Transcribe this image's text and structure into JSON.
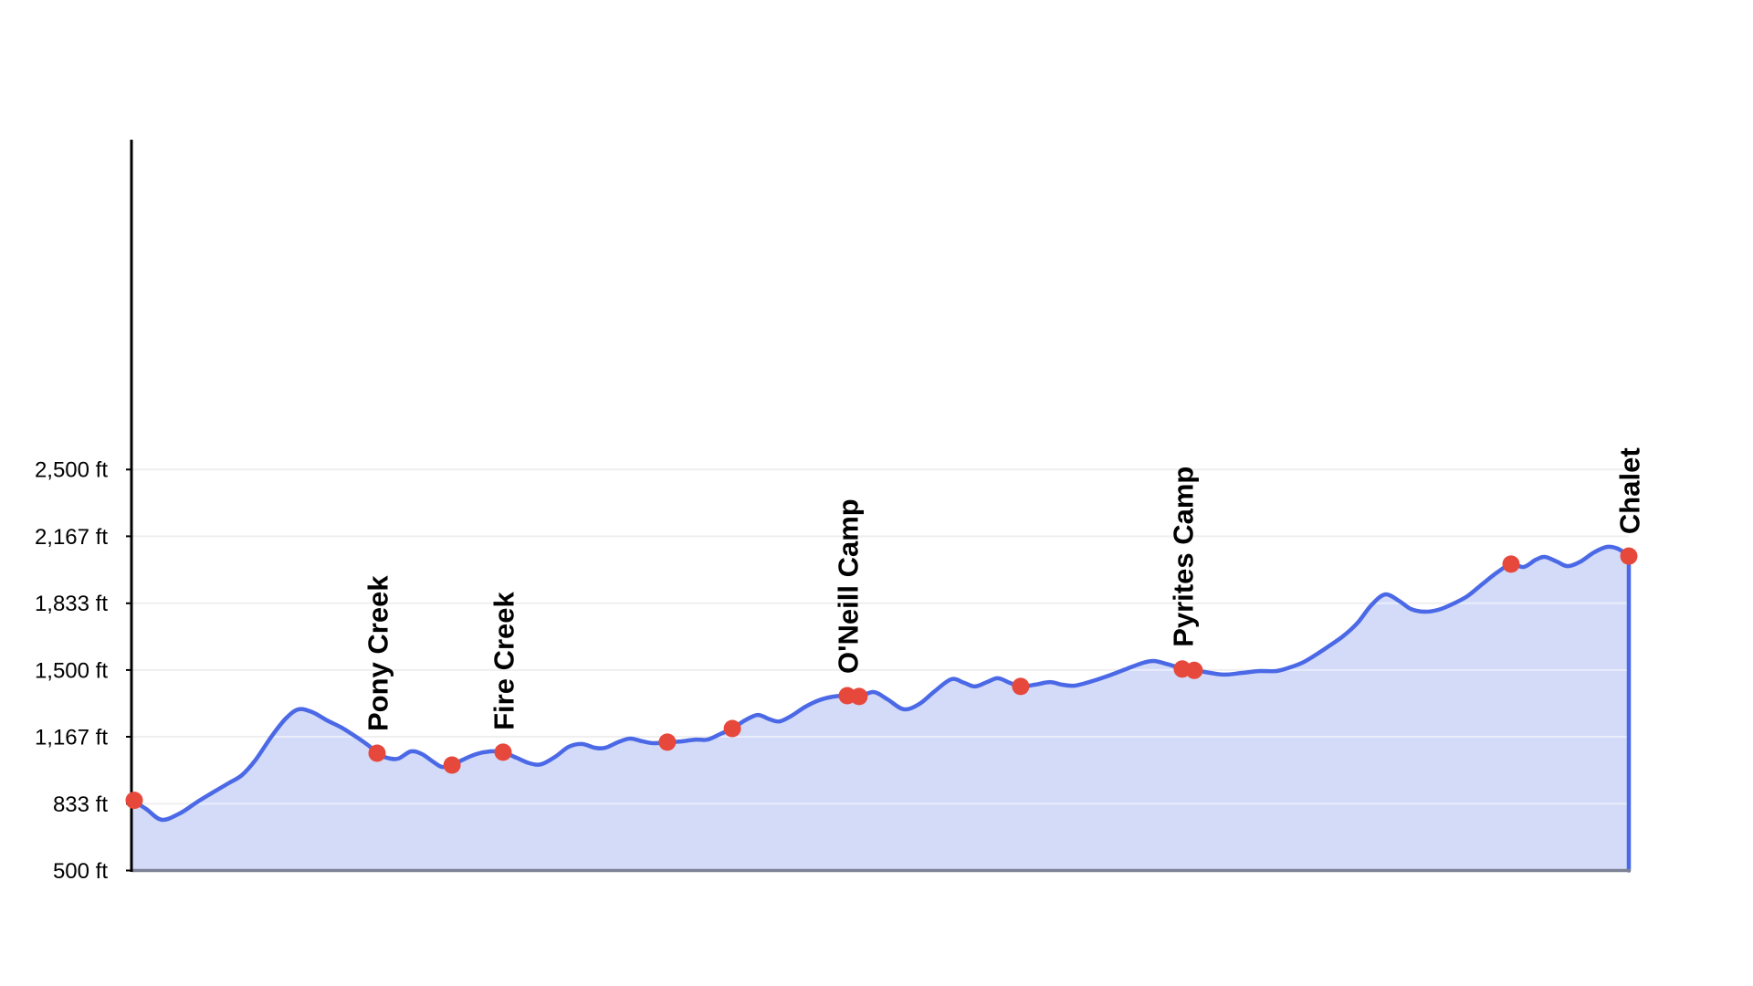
{
  "chart_data": {
    "type": "area",
    "title": "",
    "units": "ft",
    "grid": "horizontal",
    "legend": "none",
    "ylim": [
      500,
      4145
    ],
    "y_ticks": [
      {
        "ft": 500,
        "label": "500 ft"
      },
      {
        "ft": 833,
        "label": "833 ft"
      },
      {
        "ft": 1167,
        "label": "1,167 ft"
      },
      {
        "ft": 1500,
        "label": "1,500 ft"
      },
      {
        "ft": 1833,
        "label": "1,833 ft"
      },
      {
        "ft": 2167,
        "label": "2,167 ft"
      },
      {
        "ft": 2500,
        "label": "2,500 ft"
      }
    ],
    "series": [
      {
        "name": "elevation-profile",
        "points": [
          [
            0.0,
            850
          ],
          [
            0.0092,
            807
          ],
          [
            0.0195,
            753
          ],
          [
            0.0317,
            785
          ],
          [
            0.0427,
            839
          ],
          [
            0.0537,
            889
          ],
          [
            0.0641,
            935
          ],
          [
            0.0732,
            976
          ],
          [
            0.0824,
            1053
          ],
          [
            0.0933,
            1172
          ],
          [
            0.1025,
            1258
          ],
          [
            0.111,
            1304
          ],
          [
            0.1202,
            1290
          ],
          [
            0.13,
            1249
          ],
          [
            0.1397,
            1213
          ],
          [
            0.1495,
            1167
          ],
          [
            0.158,
            1122
          ],
          [
            0.1635,
            1085
          ],
          [
            0.1702,
            1062
          ],
          [
            0.1775,
            1058
          ],
          [
            0.1861,
            1094
          ],
          [
            0.1934,
            1081
          ],
          [
            0.2007,
            1044
          ],
          [
            0.2068,
            1017
          ],
          [
            0.2136,
            1026
          ],
          [
            0.2209,
            1053
          ],
          [
            0.23,
            1081
          ],
          [
            0.2392,
            1094
          ],
          [
            0.2477,
            1090
          ],
          [
            0.2568,
            1062
          ],
          [
            0.2654,
            1035
          ],
          [
            0.2733,
            1030
          ],
          [
            0.2825,
            1067
          ],
          [
            0.2916,
            1117
          ],
          [
            0.3002,
            1131
          ],
          [
            0.3093,
            1112
          ],
          [
            0.316,
            1112
          ],
          [
            0.3246,
            1140
          ],
          [
            0.3325,
            1158
          ],
          [
            0.3411,
            1144
          ],
          [
            0.3484,
            1135
          ],
          [
            0.3575,
            1140
          ],
          [
            0.3667,
            1144
          ],
          [
            0.3764,
            1153
          ],
          [
            0.3844,
            1153
          ],
          [
            0.3929,
            1181
          ],
          [
            0.4009,
            1208
          ],
          [
            0.4094,
            1249
          ],
          [
            0.4179,
            1276
          ],
          [
            0.4259,
            1254
          ],
          [
            0.4326,
            1244
          ],
          [
            0.4405,
            1272
          ],
          [
            0.4497,
            1317
          ],
          [
            0.4588,
            1349
          ],
          [
            0.468,
            1367
          ],
          [
            0.4777,
            1372
          ],
          [
            0.4856,
            1368
          ],
          [
            0.4954,
            1390
          ],
          [
            0.5046,
            1354
          ],
          [
            0.5155,
            1304
          ],
          [
            0.5259,
            1331
          ],
          [
            0.5363,
            1395
          ],
          [
            0.5473,
            1454
          ],
          [
            0.5558,
            1436
          ],
          [
            0.5631,
            1418
          ],
          [
            0.5711,
            1440
          ],
          [
            0.5784,
            1459
          ],
          [
            0.5863,
            1436
          ],
          [
            0.5936,
            1418
          ],
          [
            0.6034,
            1427
          ],
          [
            0.6132,
            1440
          ],
          [
            0.6211,
            1427
          ],
          [
            0.6297,
            1422
          ],
          [
            0.6394,
            1440
          ],
          [
            0.651,
            1468
          ],
          [
            0.6638,
            1504
          ],
          [
            0.6754,
            1536
          ],
          [
            0.6827,
            1545
          ],
          [
            0.6907,
            1531
          ],
          [
            0.6992,
            1513
          ],
          [
            0.7059,
            1504
          ],
          [
            0.7169,
            1490
          ],
          [
            0.7291,
            1477
          ],
          [
            0.7419,
            1486
          ],
          [
            0.7535,
            1495
          ],
          [
            0.7645,
            1495
          ],
          [
            0.7736,
            1513
          ],
          [
            0.7828,
            1540
          ],
          [
            0.7919,
            1581
          ],
          [
            0.8011,
            1627
          ],
          [
            0.8096,
            1672
          ],
          [
            0.8188,
            1736
          ],
          [
            0.8279,
            1823
          ],
          [
            0.8371,
            1877
          ],
          [
            0.8462,
            1846
          ],
          [
            0.8542,
            1805
          ],
          [
            0.8633,
            1791
          ],
          [
            0.8725,
            1800
          ],
          [
            0.8816,
            1827
          ],
          [
            0.892,
            1868
          ],
          [
            0.9018,
            1927
          ],
          [
            0.9121,
            1987
          ],
          [
            0.9213,
            2028
          ],
          [
            0.9298,
            2014
          ],
          [
            0.9378,
            2050
          ],
          [
            0.9439,
            2064
          ],
          [
            0.9518,
            2041
          ],
          [
            0.9591,
            2018
          ],
          [
            0.9677,
            2041
          ],
          [
            0.9768,
            2087
          ],
          [
            0.9854,
            2114
          ],
          [
            0.9927,
            2105
          ],
          [
            1.0,
            2068
          ]
        ]
      }
    ],
    "waypoints": [
      {
        "label": "",
        "x": 0.0012,
        "ft": 850
      },
      {
        "label": "Pony Creek",
        "x": 0.1635,
        "ft": 1085
      },
      {
        "label": "",
        "x": 0.2136,
        "ft": 1026
      },
      {
        "label": "Fire Creek",
        "x": 0.2477,
        "ft": 1090
      },
      {
        "label": "",
        "x": 0.3575,
        "ft": 1140
      },
      {
        "label": "",
        "x": 0.4009,
        "ft": 1208
      },
      {
        "label": "O'Neill Camp",
        "x": 0.4777,
        "ft": 1372
      },
      {
        "label": "",
        "x": 0.4856,
        "ft": 1368
      },
      {
        "label": "",
        "x": 0.5936,
        "ft": 1418
      },
      {
        "label": "Pyrites Camp",
        "x": 0.7016,
        "ft": 1505
      },
      {
        "label": "",
        "x": 0.7096,
        "ft": 1498
      },
      {
        "label": "",
        "x": 0.9213,
        "ft": 2028
      },
      {
        "label": "Chalet",
        "x": 1.0,
        "ft": 2068
      }
    ]
  },
  "colors": {
    "line": "#4b69e6",
    "fill": "#d3dbf8",
    "marker": "#e6483b",
    "grid": "#efefef",
    "grid_on_fill": "rgba(255,255,255,0.5)",
    "axis": "#000000",
    "baseline": "#7d8194",
    "text": "#000000"
  }
}
